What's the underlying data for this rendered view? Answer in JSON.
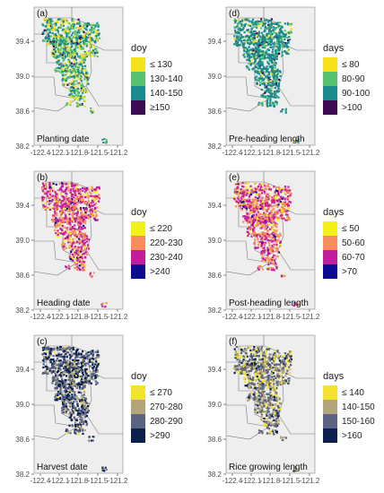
{
  "y_ticks": [
    "39.4",
    "39.0",
    "38.6",
    "38.2"
  ],
  "x_ticks": [
    "-122.4",
    "-122.1",
    "-121.8",
    "-121.5",
    "-121.2"
  ],
  "panels": [
    {
      "id": "a",
      "tag": "(a)",
      "title": "Planting date",
      "legend_title": "doy",
      "legend": [
        {
          "label": "≤ 130",
          "color": "#f5e11a"
        },
        {
          "label": "130-140",
          "color": "#58c170"
        },
        {
          "label": "140-150",
          "color": "#1b8a8c"
        },
        {
          "label": "≥150",
          "color": "#3c0d55"
        }
      ]
    },
    {
      "id": "d",
      "tag": "(d)",
      "title": "Pre-heading length",
      "legend_title": "days",
      "legend": [
        {
          "label": "≤ 80",
          "color": "#f5e11a"
        },
        {
          "label": "80-90",
          "color": "#58c170"
        },
        {
          "label": "90-100",
          "color": "#1b8a8c"
        },
        {
          "label": ">100",
          "color": "#3c0d55"
        }
      ]
    },
    {
      "id": "b",
      "tag": "(b)",
      "title": "Heading date",
      "legend_title": "doy",
      "legend": [
        {
          "label": "≤ 220",
          "color": "#f3f11a"
        },
        {
          "label": "220-230",
          "color": "#f78d5f"
        },
        {
          "label": "230-240",
          "color": "#c21d9e"
        },
        {
          "label": ">240",
          "color": "#0c0c8c"
        }
      ]
    },
    {
      "id": "e",
      "tag": "(e)",
      "title": "Post-heading length",
      "legend_title": "days",
      "legend": [
        {
          "label": "≤ 50",
          "color": "#f3f11a"
        },
        {
          "label": "50-60",
          "color": "#f78d5f"
        },
        {
          "label": "60-70",
          "color": "#c21d9e"
        },
        {
          "label": ">70",
          "color": "#0c0c8c"
        }
      ]
    },
    {
      "id": "c",
      "tag": "(c)",
      "title": "Harvest date",
      "legend_title": "doy",
      "legend": [
        {
          "label": "≤ 270",
          "color": "#f2e331"
        },
        {
          "label": "270-280",
          "color": "#b3a47a"
        },
        {
          "label": "280-290",
          "color": "#5a6382"
        },
        {
          "label": ">290",
          "color": "#0a1f4b"
        }
      ]
    },
    {
      "id": "f",
      "tag": "(f)",
      "title": "Rice growing length",
      "legend_title": "days",
      "legend": [
        {
          "label": "≤ 140",
          "color": "#f2e331"
        },
        {
          "label": "140-150",
          "color": "#b3a47a"
        },
        {
          "label": "150-160",
          "color": "#5a6382"
        },
        {
          "label": ">160",
          "color": "#0a1f4b"
        }
      ]
    }
  ]
}
